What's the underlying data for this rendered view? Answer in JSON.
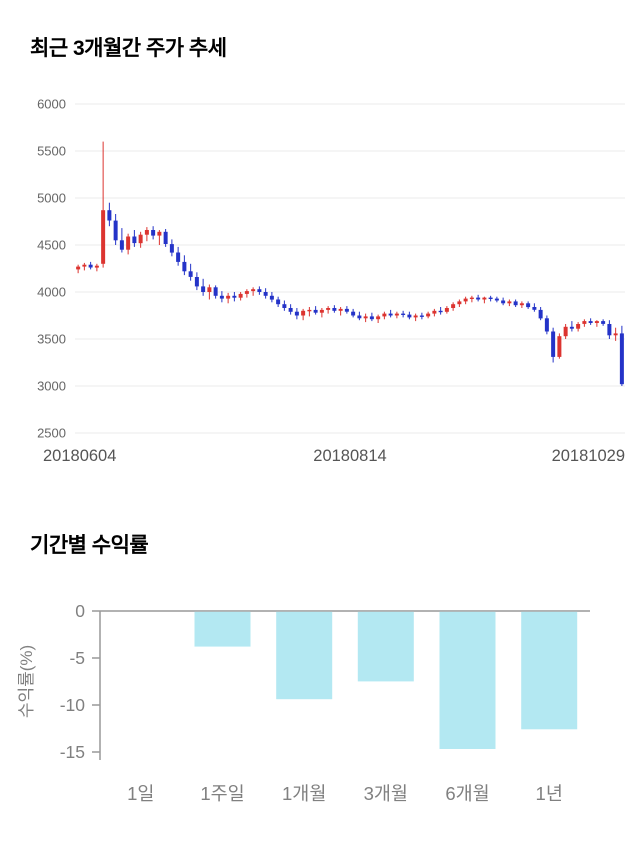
{
  "chart_data": [
    {
      "type": "candlestick",
      "title": "최근 3개월간 주가 추세",
      "x_labels": [
        "20180604",
        "20180814",
        "20181029"
      ],
      "y_ticks": [
        6000,
        5500,
        5000,
        4500,
        4000,
        3500,
        3000,
        2500
      ],
      "ylim": [
        2500,
        6000
      ],
      "grid": true,
      "up_color": "#dc3430",
      "down_color": "#2433c8",
      "grid_color": "#ebebeb",
      "ytick_color": "#666666",
      "xtick_color": "#555555",
      "candles": [
        [
          4240,
          4290,
          4200,
          4270
        ],
        [
          4270,
          4310,
          4230,
          4290
        ],
        [
          4290,
          4320,
          4240,
          4260
        ],
        [
          4260,
          4300,
          4220,
          4280
        ],
        [
          4300,
          5600,
          4260,
          4870
        ],
        [
          4870,
          4950,
          4700,
          4760
        ],
        [
          4760,
          4830,
          4500,
          4550
        ],
        [
          4550,
          4680,
          4420,
          4450
        ],
        [
          4450,
          4620,
          4400,
          4590
        ],
        [
          4590,
          4660,
          4480,
          4520
        ],
        [
          4520,
          4640,
          4470,
          4610
        ],
        [
          4610,
          4690,
          4540,
          4660
        ],
        [
          4660,
          4700,
          4560,
          4600
        ],
        [
          4600,
          4660,
          4500,
          4640
        ],
        [
          4640,
          4670,
          4480,
          4510
        ],
        [
          4510,
          4560,
          4380,
          4420
        ],
        [
          4420,
          4480,
          4280,
          4320
        ],
        [
          4320,
          4390,
          4180,
          4220
        ],
        [
          4220,
          4300,
          4120,
          4160
        ],
        [
          4160,
          4210,
          4020,
          4060
        ],
        [
          4060,
          4140,
          3960,
          4000
        ],
        [
          4000,
          4080,
          3920,
          4050
        ],
        [
          4050,
          4070,
          3930,
          3960
        ],
        [
          3960,
          4010,
          3890,
          3930
        ],
        [
          3930,
          3990,
          3880,
          3960
        ],
        [
          3960,
          4000,
          3900,
          3940
        ],
        [
          3940,
          4000,
          3910,
          3980
        ],
        [
          3980,
          4030,
          3940,
          4010
        ],
        [
          4010,
          4050,
          3960,
          4030
        ],
        [
          4030,
          4060,
          3970,
          4000
        ],
        [
          4000,
          4040,
          3930,
          3960
        ],
        [
          3960,
          4000,
          3890,
          3920
        ],
        [
          3920,
          3950,
          3840,
          3870
        ],
        [
          3870,
          3910,
          3800,
          3830
        ],
        [
          3830,
          3870,
          3760,
          3790
        ],
        [
          3790,
          3830,
          3710,
          3750
        ],
        [
          3750,
          3820,
          3700,
          3800
        ],
        [
          3800,
          3840,
          3740,
          3810
        ],
        [
          3810,
          3850,
          3760,
          3780
        ],
        [
          3780,
          3830,
          3730,
          3810
        ],
        [
          3810,
          3850,
          3770,
          3830
        ],
        [
          3830,
          3860,
          3780,
          3800
        ],
        [
          3800,
          3840,
          3750,
          3820
        ],
        [
          3820,
          3850,
          3770,
          3790
        ],
        [
          3790,
          3820,
          3730,
          3750
        ],
        [
          3750,
          3790,
          3700,
          3720
        ],
        [
          3720,
          3770,
          3680,
          3740
        ],
        [
          3740,
          3780,
          3690,
          3710
        ],
        [
          3710,
          3760,
          3670,
          3740
        ],
        [
          3740,
          3790,
          3710,
          3770
        ],
        [
          3770,
          3810,
          3730,
          3750
        ],
        [
          3750,
          3790,
          3720,
          3770
        ],
        [
          3770,
          3800,
          3730,
          3760
        ],
        [
          3760,
          3790,
          3710,
          3730
        ],
        [
          3730,
          3770,
          3690,
          3750
        ],
        [
          3750,
          3780,
          3710,
          3740
        ],
        [
          3740,
          3790,
          3720,
          3770
        ],
        [
          3770,
          3820,
          3740,
          3800
        ],
        [
          3800,
          3840,
          3760,
          3790
        ],
        [
          3790,
          3850,
          3770,
          3830
        ],
        [
          3830,
          3890,
          3800,
          3870
        ],
        [
          3870,
          3920,
          3840,
          3900
        ],
        [
          3900,
          3950,
          3870,
          3930
        ],
        [
          3930,
          3960,
          3890,
          3940
        ],
        [
          3940,
          3970,
          3900,
          3920
        ],
        [
          3920,
          3950,
          3880,
          3940
        ],
        [
          3940,
          3960,
          3900,
          3930
        ],
        [
          3930,
          3950,
          3890,
          3910
        ],
        [
          3910,
          3940,
          3860,
          3880
        ],
        [
          3880,
          3920,
          3850,
          3900
        ],
        [
          3900,
          3920,
          3840,
          3860
        ],
        [
          3860,
          3900,
          3830,
          3880
        ],
        [
          3880,
          3900,
          3820,
          3840
        ],
        [
          3840,
          3880,
          3790,
          3810
        ],
        [
          3810,
          3840,
          3700,
          3720
        ],
        [
          3720,
          3750,
          3550,
          3580
        ],
        [
          3580,
          3620,
          3250,
          3310
        ],
        [
          3310,
          3560,
          3290,
          3530
        ],
        [
          3530,
          3660,
          3500,
          3630
        ],
        [
          3630,
          3690,
          3580,
          3610
        ],
        [
          3610,
          3680,
          3580,
          3660
        ],
        [
          3660,
          3710,
          3630,
          3690
        ],
        [
          3690,
          3720,
          3650,
          3670
        ],
        [
          3670,
          3700,
          3630,
          3690
        ],
        [
          3690,
          3710,
          3640,
          3660
        ],
        [
          3660,
          3700,
          3500,
          3540
        ],
        [
          3540,
          3620,
          3480,
          3560
        ],
        [
          3560,
          3640,
          3000,
          3020
        ]
      ]
    },
    {
      "type": "bar",
      "title": "기간별 수익률",
      "ylabel": "수익률(%)",
      "categories": [
        "1일",
        "1주일",
        "1개월",
        "3개월",
        "6개월",
        "1년"
      ],
      "values": [
        0,
        -3.7,
        -9.3,
        -7.4,
        -14.6,
        -12.5
      ],
      "y_ticks": [
        0,
        -5,
        -10,
        -15
      ],
      "ylim": [
        -15,
        0
      ],
      "legend": false,
      "bar_color": "#b3e8f2",
      "axis_color": "#999999",
      "text_color": "#808080"
    }
  ]
}
